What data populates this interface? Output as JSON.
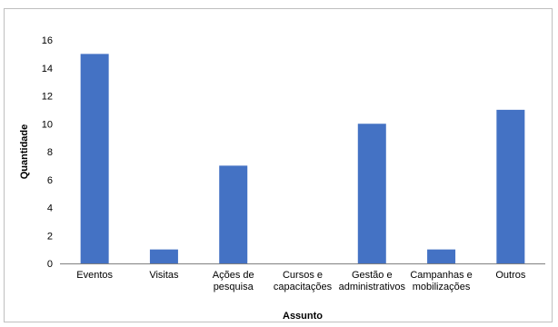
{
  "chart_data": {
    "type": "bar",
    "categories": [
      [
        "Eventos"
      ],
      [
        "Visitas"
      ],
      [
        "Ações de",
        "pesquisa"
      ],
      [
        "Cursos e",
        "capacitações"
      ],
      [
        "Gestão e",
        "administrativos"
      ],
      [
        "Campanhas e",
        "mobilizações"
      ],
      [
        "Outros"
      ]
    ],
    "values": [
      15,
      1,
      7,
      0,
      10,
      1,
      11
    ],
    "xlabel": "Assunto",
    "ylabel": "Quantidade",
    "ylim": [
      0,
      16
    ],
    "yticks": [
      0,
      2,
      4,
      6,
      8,
      10,
      12,
      14,
      16
    ],
    "grid": false,
    "legend": "none",
    "bar_color": "#4472c4"
  }
}
